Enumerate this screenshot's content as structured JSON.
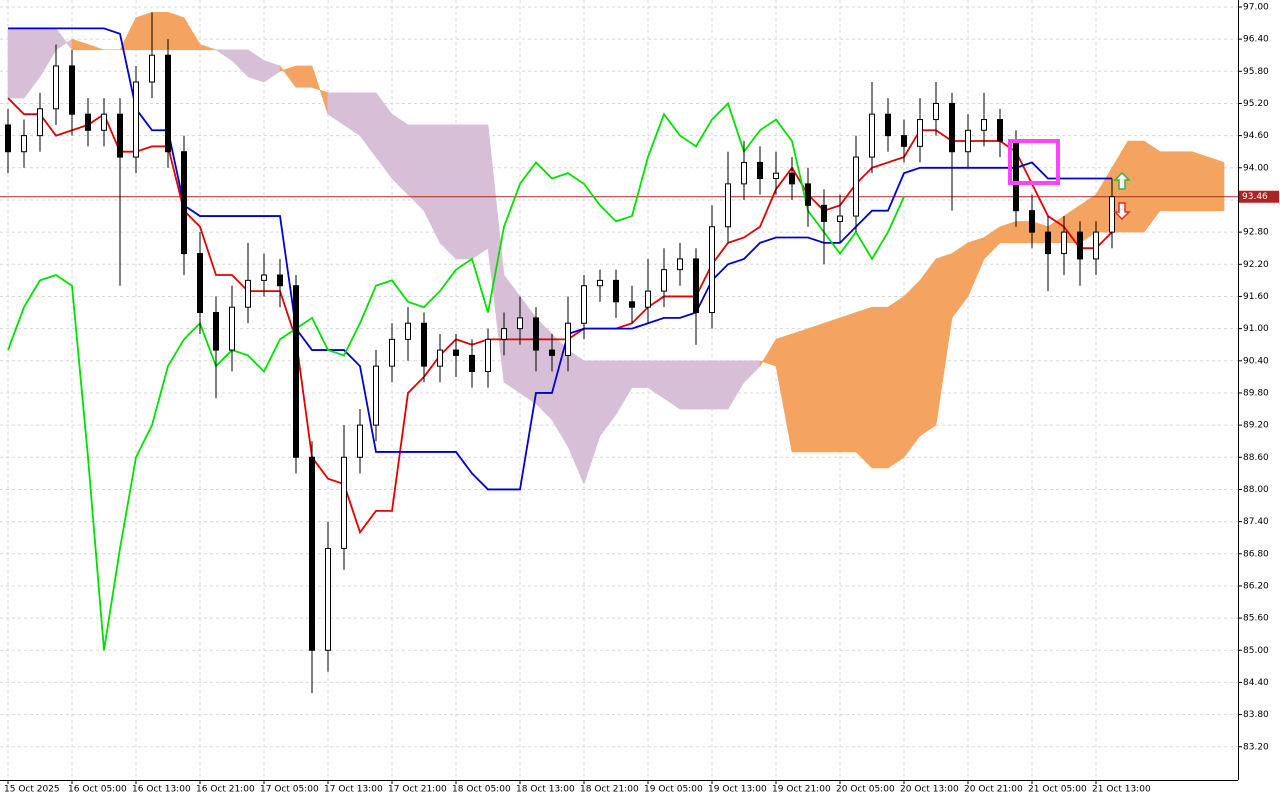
{
  "chart_data": {
    "type": "candlestick",
    "xlim": [
      -0.5,
      76.875
    ],
    "ylim": [
      82.58,
      97.13
    ],
    "grid": true,
    "xticks": [
      {
        "value": 0,
        "label": "15 Oct 2025"
      },
      {
        "value": 4,
        "label": "16 Oct 05:00"
      },
      {
        "value": 8,
        "label": "16 Oct 13:00"
      },
      {
        "value": 12,
        "label": "16 Oct 21:00"
      },
      {
        "value": 16,
        "label": "17 Oct 05:00"
      },
      {
        "value": 20,
        "label": "17 Oct 13:00"
      },
      {
        "value": 24,
        "label": "17 Oct 21:00"
      },
      {
        "value": 28,
        "label": "18 Oct 05:00"
      },
      {
        "value": 32,
        "label": "18 Oct 13:00"
      },
      {
        "value": 36,
        "label": "18 Oct 21:00"
      },
      {
        "value": 40,
        "label": "19 Oct 05:00"
      },
      {
        "value": 44,
        "label": "19 Oct 13:00"
      },
      {
        "value": 48,
        "label": "19 Oct 21:00"
      },
      {
        "value": 52,
        "label": "20 Oct 05:00"
      },
      {
        "value": 56,
        "label": "20 Oct 13:00"
      },
      {
        "value": 60,
        "label": "20 Oct 21:00"
      },
      {
        "value": 64,
        "label": "21 Oct 05:00"
      },
      {
        "value": 68,
        "label": "21 Oct 13:00"
      }
    ],
    "yticks": [
      {
        "value": 97.0,
        "label": "97.00"
      },
      {
        "value": 96.4,
        "label": "96.40"
      },
      {
        "value": 95.8,
        "label": "95.80"
      },
      {
        "value": 95.2,
        "label": "95.20"
      },
      {
        "value": 94.6,
        "label": "94.60"
      },
      {
        "value": 94.0,
        "label": "94.00"
      },
      {
        "value": 93.4,
        "label": "93.40"
      },
      {
        "value": 92.8,
        "label": "92.80"
      },
      {
        "value": 92.2,
        "label": "92.20"
      },
      {
        "value": 91.6,
        "label": "91.60"
      },
      {
        "value": 91.0,
        "label": "91.00"
      },
      {
        "value": 90.4,
        "label": "90.40"
      },
      {
        "value": 89.8,
        "label": "89.80"
      },
      {
        "value": 89.2,
        "label": "89.20"
      },
      {
        "value": 88.6,
        "label": "88.60"
      },
      {
        "value": 88.0,
        "label": "88.00"
      },
      {
        "value": 87.4,
        "label": "87.40"
      },
      {
        "value": 86.8,
        "label": "86.80"
      },
      {
        "value": 86.2,
        "label": "86.20"
      },
      {
        "value": 85.6,
        "label": "85.60"
      },
      {
        "value": 85.0,
        "label": "85.00"
      },
      {
        "value": 84.4,
        "label": "84.40"
      },
      {
        "value": 83.8,
        "label": "83.80"
      },
      {
        "value": 83.2,
        "label": "83.20"
      }
    ],
    "last_price": 93.46,
    "last_price_color": "#b22222",
    "candles": {
      "bull_color": "#ffffff",
      "bear_color": "#000000",
      "open": [
        94.8,
        94.3,
        94.6,
        95.1,
        95.9,
        95.0,
        94.7,
        95.0,
        94.2,
        95.6,
        96.1,
        94.3,
        92.4,
        91.3,
        90.6,
        91.4,
        91.9,
        92.0,
        91.8,
        88.6,
        85.0,
        86.9,
        88.6,
        89.2,
        90.3,
        90.8,
        91.1,
        90.3,
        90.6,
        90.5,
        90.2,
        90.8,
        91.0,
        91.2,
        90.6,
        90.5,
        91.1,
        91.8,
        91.9,
        91.5,
        91.4,
        91.7,
        92.1,
        92.3,
        91.3,
        92.9,
        93.7,
        94.1,
        93.8,
        93.9,
        93.7,
        93.3,
        93.0,
        93.1,
        94.2,
        95.0,
        94.6,
        94.4,
        94.9,
        95.2,
        94.3,
        94.7,
        94.9,
        94.5,
        93.2,
        92.8,
        92.4,
        92.8,
        92.3,
        92.8
      ],
      "high": [
        95.1,
        94.9,
        95.4,
        96.3,
        96.2,
        95.3,
        95.3,
        95.3,
        95.9,
        96.9,
        96.4,
        94.6,
        92.8,
        91.6,
        91.8,
        92.6,
        92.4,
        92.3,
        92.0,
        88.9,
        87.4,
        89.2,
        89.5,
        90.6,
        91.1,
        91.4,
        91.3,
        90.9,
        90.9,
        90.8,
        91.0,
        91.3,
        91.6,
        91.4,
        90.9,
        91.6,
        92.0,
        92.1,
        92.1,
        91.8,
        92.3,
        92.5,
        92.6,
        92.5,
        93.3,
        94.3,
        94.5,
        94.4,
        94.3,
        94.2,
        94.0,
        93.6,
        93.5,
        94.6,
        95.6,
        95.3,
        94.9,
        95.3,
        95.6,
        95.4,
        95.0,
        95.4,
        95.1,
        94.7,
        93.5,
        93.1,
        93.1,
        93.0,
        93.0,
        93.8
      ],
      "low": [
        93.9,
        94.0,
        94.3,
        94.8,
        94.6,
        94.4,
        94.4,
        91.8,
        93.9,
        95.3,
        94.0,
        92.0,
        90.9,
        89.7,
        90.2,
        91.1,
        91.6,
        91.4,
        88.3,
        84.2,
        84.6,
        86.5,
        88.3,
        88.9,
        90.0,
        90.4,
        90.0,
        90.0,
        90.1,
        89.9,
        89.9,
        90.5,
        90.7,
        90.2,
        90.2,
        90.2,
        90.8,
        91.5,
        91.2,
        91.1,
        91.1,
        91.4,
        91.8,
        90.7,
        91.0,
        92.6,
        93.4,
        93.5,
        93.5,
        93.4,
        92.9,
        92.2,
        92.6,
        92.8,
        93.9,
        94.3,
        94.1,
        94.1,
        94.6,
        93.2,
        94.0,
        94.4,
        94.2,
        92.9,
        92.5,
        91.7,
        92.0,
        91.8,
        92.0,
        92.5
      ],
      "close": [
        94.3,
        94.6,
        95.1,
        95.9,
        95.0,
        94.7,
        95.0,
        94.2,
        95.6,
        96.1,
        94.3,
        92.4,
        91.3,
        90.6,
        91.4,
        91.9,
        92.0,
        91.8,
        88.6,
        85.0,
        86.9,
        88.6,
        89.2,
        90.3,
        90.8,
        91.1,
        90.3,
        90.6,
        90.5,
        90.2,
        90.8,
        91.0,
        91.2,
        90.6,
        90.5,
        91.1,
        91.8,
        91.9,
        91.5,
        91.4,
        91.7,
        92.1,
        92.3,
        91.3,
        92.9,
        93.7,
        94.1,
        93.8,
        93.9,
        93.7,
        93.3,
        93.0,
        93.1,
        94.2,
        95.0,
        94.6,
        94.4,
        94.9,
        95.2,
        94.3,
        94.7,
        94.9,
        94.5,
        93.2,
        92.8,
        92.4,
        92.8,
        92.3,
        92.8,
        93.46
      ]
    },
    "series": [
      {
        "color": "#e00000",
        "values": [
          95.3,
          95.0,
          95.0,
          94.6,
          94.7,
          94.8,
          95.0,
          94.3,
          94.3,
          94.4,
          94.4,
          93.2,
          92.9,
          92.0,
          92.0,
          91.7,
          91.7,
          91.7,
          90.8,
          88.6,
          88.2,
          88.1,
          87.2,
          87.6,
          87.6,
          89.8,
          90.1,
          90.5,
          90.8,
          90.7,
          90.8,
          90.8,
          90.8,
          90.8,
          90.8,
          90.8,
          91.0,
          91.0,
          91.0,
          91.1,
          91.4,
          91.6,
          91.6,
          91.6,
          92.2,
          92.6,
          92.7,
          92.9,
          93.6,
          94.0,
          93.5,
          93.2,
          93.3,
          93.7,
          94.0,
          94.1,
          94.2,
          94.7,
          94.7,
          94.5,
          94.5,
          94.5,
          94.5,
          94.3,
          93.7,
          93.1,
          92.9,
          92.5,
          92.5,
          92.8
        ]
      },
      {
        "color": "#0000cc",
        "values": [
          96.6,
          96.6,
          96.6,
          96.6,
          96.6,
          96.6,
          96.6,
          96.5,
          95.1,
          94.7,
          94.7,
          93.3,
          93.1,
          93.1,
          93.1,
          93.1,
          93.1,
          93.1,
          91.0,
          90.6,
          90.6,
          90.6,
          90.3,
          88.7,
          88.7,
          88.7,
          88.7,
          88.7,
          88.7,
          88.3,
          88.0,
          88.0,
          88.0,
          89.8,
          89.8,
          90.9,
          91.0,
          91.0,
          91.0,
          91.0,
          91.1,
          91.2,
          91.2,
          91.3,
          91.9,
          92.2,
          92.3,
          92.6,
          92.7,
          92.7,
          92.7,
          92.6,
          92.6,
          92.9,
          93.2,
          93.2,
          93.9,
          94.0,
          94.0,
          94.0,
          94.0,
          94.0,
          94.0,
          94.0,
          94.1,
          93.8,
          93.8,
          93.8,
          93.8,
          93.8
        ]
      },
      {
        "color": "#00e000",
        "values": [
          90.6,
          91.4,
          91.9,
          92.0,
          91.8,
          88.6,
          85.0,
          86.9,
          88.6,
          89.2,
          90.3,
          90.8,
          91.1,
          90.3,
          90.6,
          90.5,
          90.2,
          90.8,
          91.0,
          91.2,
          90.6,
          90.5,
          91.1,
          91.8,
          91.9,
          91.5,
          91.4,
          91.7,
          92.1,
          92.3,
          91.3,
          92.9,
          93.7,
          94.1,
          93.8,
          93.9,
          93.7,
          93.3,
          93.0,
          93.1,
          94.2,
          95.0,
          94.6,
          94.4,
          94.9,
          95.2,
          94.3,
          94.7,
          94.9,
          94.5,
          93.2,
          92.8,
          92.4,
          92.8,
          92.3,
          92.8,
          93.46,
          null,
          null,
          null,
          null,
          null,
          null,
          null,
          null,
          null,
          null,
          null,
          null,
          null
        ]
      }
    ],
    "cloud": {
      "bull_color": "#f4a460",
      "bear_color": "#d8bfd8",
      "span_a": [
        95.3,
        95.3,
        95.7,
        96.2,
        96.4,
        96.3,
        96.2,
        96.2,
        96.8,
        96.9,
        96.9,
        96.8,
        96.3,
        96.2,
        96.0,
        95.7,
        95.6,
        95.8,
        95.9,
        95.9,
        95.0,
        94.8,
        94.6,
        94.2,
        93.8,
        93.5,
        93.2,
        92.6,
        92.3,
        92.3,
        92.5,
        90.0,
        89.8,
        89.6,
        89.3,
        88.8,
        88.1,
        89.0,
        89.4,
        89.9,
        89.9,
        89.7,
        89.5,
        89.5,
        89.5,
        89.5,
        90.0,
        90.3,
        90.8,
        90.9,
        91.0,
        91.1,
        91.2,
        91.3,
        91.4,
        91.4,
        91.6,
        91.9,
        92.3,
        92.4,
        92.6,
        92.7,
        92.9,
        93.0,
        93.0,
        92.9,
        93.1,
        93.3,
        93.5,
        94.0,
        94.5,
        94.5,
        94.3,
        94.3,
        94.3,
        94.2,
        94.1
      ],
      "span_b": [
        96.6,
        96.6,
        96.6,
        96.6,
        96.2,
        96.2,
        96.2,
        96.2,
        96.2,
        96.2,
        96.2,
        96.2,
        96.2,
        96.2,
        96.2,
        96.2,
        96.0,
        95.9,
        95.5,
        95.5,
        95.4,
        95.4,
        95.4,
        95.4,
        95.0,
        94.8,
        94.8,
        94.8,
        94.8,
        94.8,
        94.8,
        92.0,
        91.6,
        91.2,
        90.9,
        90.6,
        90.4,
        90.4,
        90.4,
        90.4,
        90.4,
        90.4,
        90.4,
        90.4,
        90.4,
        90.4,
        90.4,
        90.4,
        90.3,
        88.7,
        88.7,
        88.7,
        88.7,
        88.7,
        88.4,
        88.4,
        88.6,
        89.0,
        89.2,
        91.2,
        91.6,
        92.3,
        92.6,
        92.6,
        92.6,
        92.6,
        92.6,
        92.6,
        92.8,
        92.8,
        92.8,
        92.8,
        93.2,
        93.2,
        93.2,
        93.2,
        93.2
      ]
    }
  }
}
